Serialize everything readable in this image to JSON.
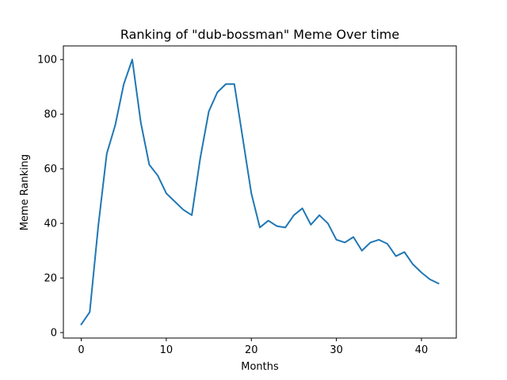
{
  "chart_data": {
    "type": "line",
    "title": "Ranking of \"dub-bossman\" Meme Over time",
    "xlabel": "Months",
    "ylabel": "Meme Ranking",
    "xlim": [
      -2.1,
      44.1
    ],
    "ylim": [
      -2.0,
      105.0
    ],
    "xticks": [
      0,
      10,
      20,
      30,
      40
    ],
    "yticks": [
      0,
      20,
      40,
      60,
      80,
      100
    ],
    "grid": false,
    "line_color": "#1f77b4",
    "series": [
      {
        "x": [
          0,
          1,
          2,
          3,
          4,
          5,
          6,
          7,
          8,
          9,
          10,
          11,
          12,
          13,
          14,
          15,
          16,
          17,
          18,
          19,
          20,
          21,
          22,
          23,
          24,
          25,
          26,
          27,
          28,
          29,
          30,
          31,
          32,
          33,
          34,
          35,
          36,
          37,
          38,
          39,
          40,
          41,
          42
        ],
        "values": [
          3,
          7.5,
          39,
          65.5,
          76,
          91,
          100,
          77,
          61.5,
          57.5,
          51,
          48,
          45,
          43,
          64,
          81,
          88,
          91,
          91,
          71,
          51,
          38.5,
          41,
          39,
          38.5,
          43,
          45.5,
          39.5,
          43,
          40,
          34,
          33,
          35,
          30,
          33,
          34,
          32.5,
          28,
          29.5,
          25,
          22,
          19.5,
          18
        ]
      }
    ]
  }
}
